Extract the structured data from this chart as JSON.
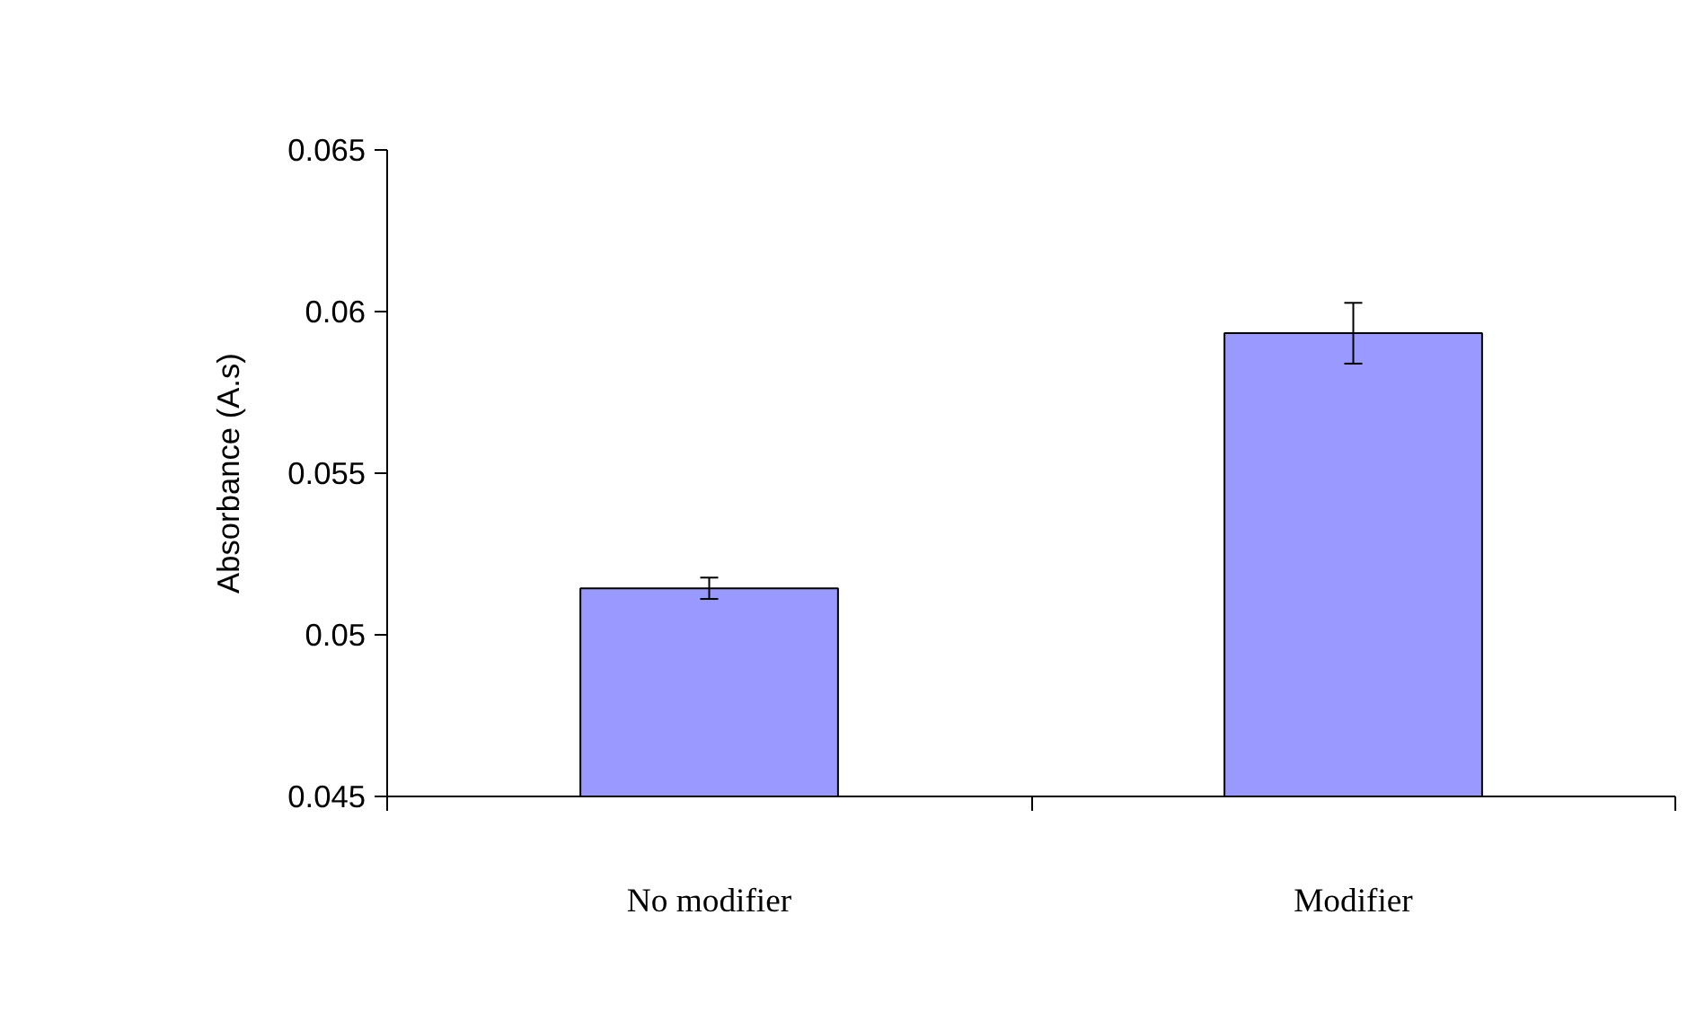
{
  "chart_data": {
    "type": "bar",
    "ylabel": "Absorbance (A.s)",
    "categories": [
      "No modifier",
      "Modifier"
    ],
    "values": [
      0.05144,
      0.05933
    ],
    "errors": [
      0.00033,
      0.00094
    ],
    "color": "#9999ff",
    "ylim": [
      0.045,
      0.065
    ],
    "yticks": [
      0.045,
      0.05,
      0.055,
      0.06,
      0.065
    ],
    "grid": false
  }
}
